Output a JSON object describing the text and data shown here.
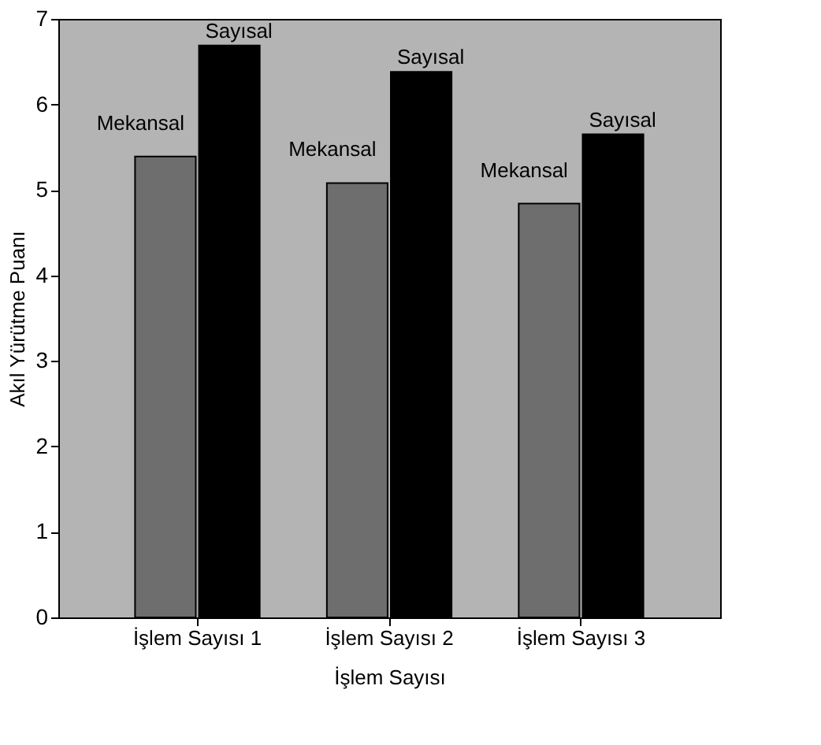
{
  "chart_data": {
    "type": "bar",
    "xlabel": "İşlem Sayısı",
    "ylabel": "Akıl Yürütme Puanı",
    "categories": [
      "İşlem Sayısı 1",
      "İşlem Sayısı 2",
      "İşlem Sayısı 3"
    ],
    "series": [
      {
        "name": "Mekansal",
        "color": "#6e6e6e",
        "values": [
          5.39,
          5.08,
          4.84
        ]
      },
      {
        "name": "Sayısal",
        "color": "#000000",
        "values": [
          6.69,
          6.38,
          5.65
        ]
      }
    ],
    "ylim": [
      0,
      7
    ],
    "yticks": [
      0,
      1,
      2,
      3,
      4,
      5,
      6,
      7
    ],
    "grid": false,
    "legend": false
  }
}
